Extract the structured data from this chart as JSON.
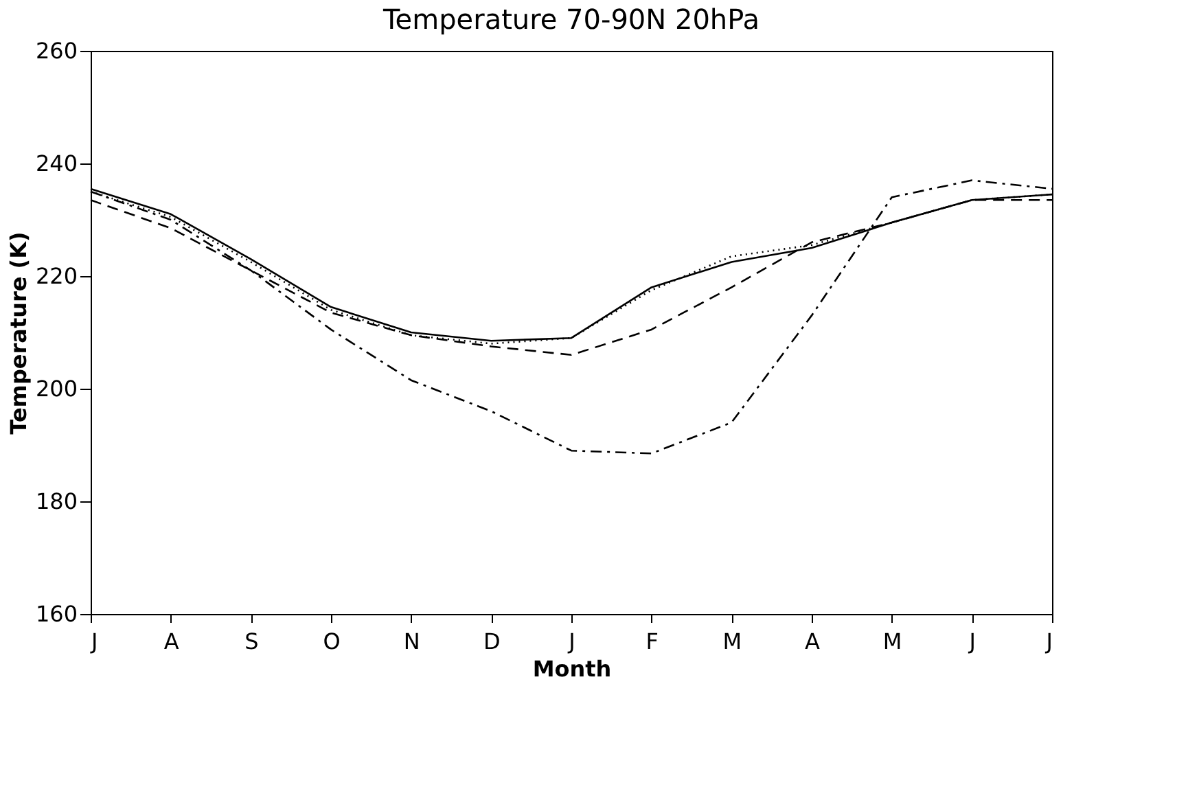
{
  "chart_data": {
    "type": "line",
    "title": "Temperature 70-90N 20hPa",
    "xlabel": "Month",
    "ylabel": "Temperature (K)",
    "categories": [
      "J",
      "A",
      "S",
      "O",
      "N",
      "D",
      "J",
      "F",
      "M",
      "A",
      "M",
      "J",
      "J"
    ],
    "ylim": [
      160,
      260
    ],
    "yticks": [
      160,
      180,
      200,
      220,
      240,
      260
    ],
    "grid": false,
    "series": [
      {
        "color": "#000000",
        "line_style": "solid",
        "values": [
          235.5,
          231,
          223,
          214.5,
          210,
          208.5,
          209,
          218,
          222.5,
          225,
          229.5,
          233.5,
          234.5
        ]
      },
      {
        "color": "#000000",
        "line_style": "dotted",
        "values": [
          235,
          230.5,
          222.5,
          214,
          209.5,
          208,
          209,
          217.5,
          223.5,
          225.5,
          229.5,
          233.5,
          234.5
        ]
      },
      {
        "color": "#000000",
        "line_style": "dashed",
        "values": [
          233.5,
          228.5,
          221,
          213.5,
          209.5,
          207.5,
          206,
          210.5,
          218,
          226,
          229.5,
          233.5,
          233.5
        ]
      },
      {
        "color": "#000000",
        "line_style": "dashdot",
        "values": [
          235,
          230,
          221,
          210.5,
          201.5,
          196,
          189,
          188.5,
          194,
          213,
          234,
          237,
          235.5
        ]
      }
    ]
  }
}
